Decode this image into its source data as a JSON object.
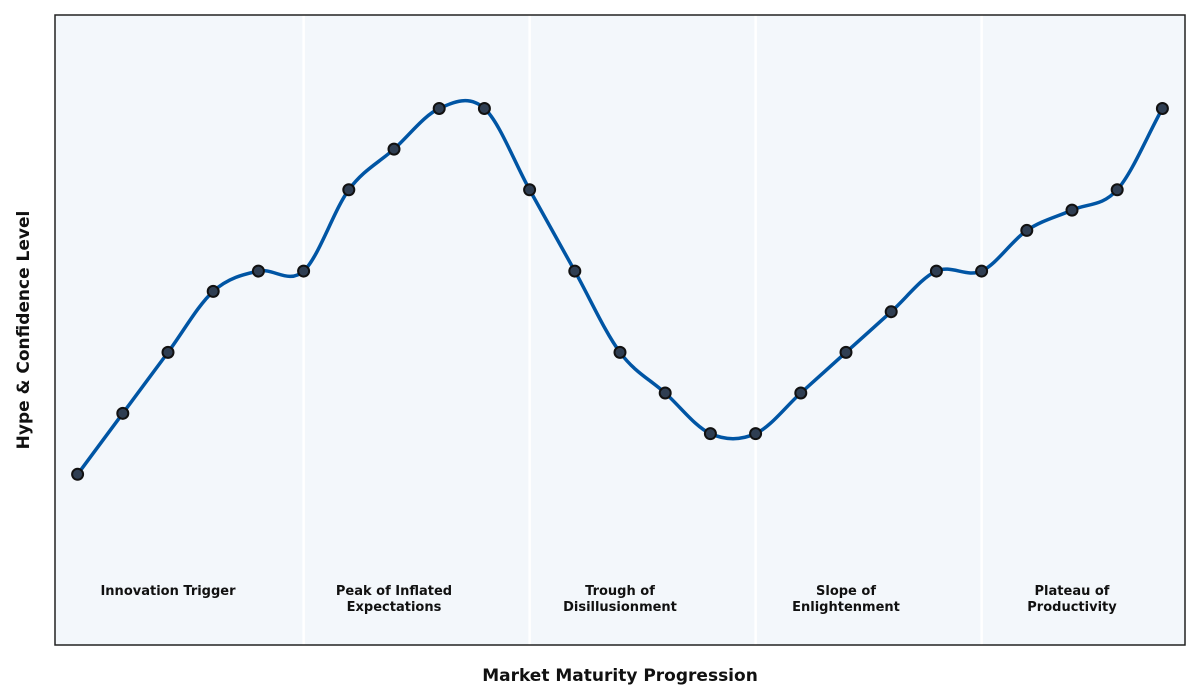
{
  "chart_data": {
    "type": "line",
    "title": "",
    "xlabel": "Market Maturity Progression",
    "ylabel": "Hype & Confidence Level",
    "x": [
      0,
      1,
      2,
      3,
      4,
      5,
      6,
      7,
      8,
      9,
      10,
      11,
      12,
      13,
      14,
      15,
      16,
      17,
      18,
      19,
      20,
      21,
      22,
      23,
      24
    ],
    "series": [
      {
        "values": [
          22,
          37,
          52,
          67,
          72,
          72,
          92,
          102,
          112,
          112,
          92,
          72,
          52,
          42,
          32,
          32,
          42,
          52,
          62,
          72,
          72,
          82,
          87,
          92,
          112
        ]
      }
    ],
    "xlim": [
      -0.5,
      24.5
    ],
    "ylim": [
      -20,
      135
    ],
    "phases": [
      {
        "lines": [
          "Innovation Trigger"
        ],
        "start": -0.5,
        "end": 5
      },
      {
        "lines": [
          "Peak of Inflated",
          "Expectations"
        ],
        "start": 5,
        "end": 10
      },
      {
        "lines": [
          "Trough of",
          "Disillusionment"
        ],
        "start": 10,
        "end": 15
      },
      {
        "lines": [
          "Slope of",
          "Enlightenment"
        ],
        "start": 15,
        "end": 20
      },
      {
        "lines": [
          "Plateau of",
          "Productivity"
        ],
        "start": 20,
        "end": 24.5
      }
    ],
    "grid": false,
    "legend": "none",
    "colors": {
      "line": "#0055a4",
      "marker_fill": "#2f3e52",
      "marker_edge": "#111111",
      "background": "#f3f7fb",
      "phase_divider": "#ffffff",
      "frame": "#222222"
    }
  }
}
